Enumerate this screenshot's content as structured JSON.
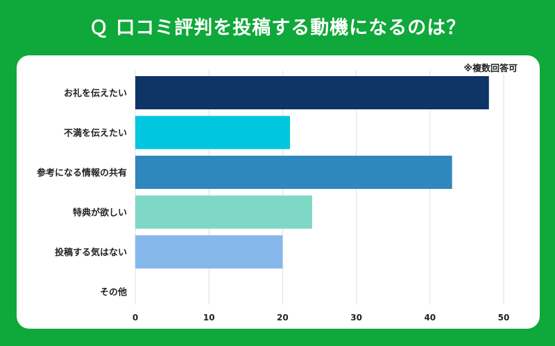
{
  "title": "Ｑ 口コミ評判を投稿する動機になるのは？",
  "note": "※複数回答可",
  "chart_data": {
    "type": "bar",
    "orientation": "horizontal",
    "title": "Ｑ 口コミ評判を投稿する動機になるのは？",
    "categories": [
      "お礼を伝えたい",
      "不満を伝えたい",
      "参考になる情報の共有",
      "特典が欲しい",
      "投稿する気はない",
      "その他"
    ],
    "values": [
      48,
      21,
      43,
      24,
      20,
      0
    ],
    "xlim": [
      0,
      50
    ],
    "ticks": [
      0,
      10,
      20,
      30,
      40,
      50
    ],
    "grid": true,
    "legend": "none"
  },
  "colors": {
    "background": "#0fa83a",
    "bars": [
      "#0f3466",
      "#00c7df",
      "#2e88bd",
      "#7fd8c6",
      "#86b8ec",
      "#cccccc"
    ],
    "grid": "#dddde8"
  }
}
